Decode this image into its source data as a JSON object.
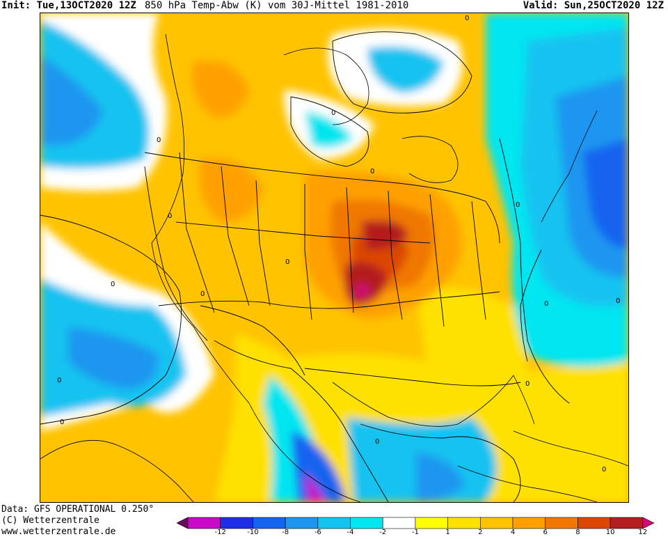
{
  "header": {
    "init": "Init: Tue,13OCT2020 12Z",
    "title": "850 hPa Temp-Abw (K) vom 30J-Mittel 1981-2010",
    "valid": "Valid: Sun,25OCT2020 12Z"
  },
  "credits": {
    "line1": "Data: GFS OPERATIONAL 0.250°",
    "line2": "(C) Wetterzentrale",
    "line3": "www.wetterzentrale.de"
  },
  "colorbar": {
    "labels": [
      "-12",
      "-10",
      "-8",
      "-6",
      "-4",
      "-2",
      "-1",
      "1",
      "2",
      "4",
      "6",
      "8",
      "10",
      "12"
    ],
    "colors": [
      "#6a0a5e",
      "#c80ac8",
      "#1e2ee6",
      "#1464f0",
      "#1e96f0",
      "#14c3f0",
      "#00e6f0",
      "#ffffff",
      "#ffff00",
      "#ffe100",
      "#ffc300",
      "#ffa000",
      "#f07800",
      "#dc4600",
      "#b41e1e",
      "#d20a78"
    ]
  },
  "map": {
    "contour_labels": [
      "0",
      "0",
      "0",
      "0",
      "0",
      "0",
      "0",
      "0",
      "0",
      "0",
      "0",
      "0",
      "0",
      "0",
      "0",
      "0"
    ]
  }
}
